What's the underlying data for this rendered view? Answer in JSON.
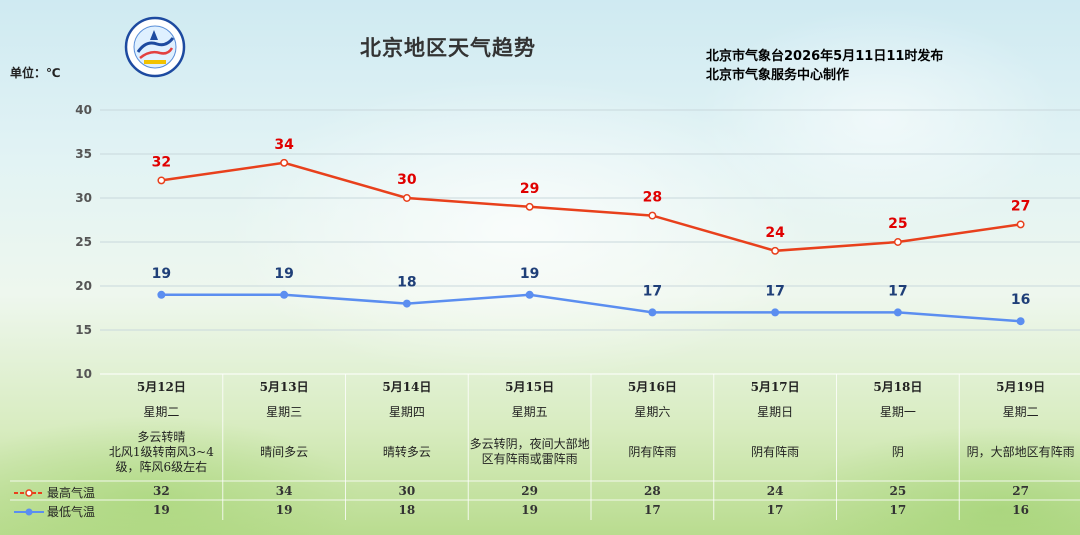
{
  "header": {
    "title": "北京地区天气趋势",
    "publisher_line1": "北京市气象台2026年5月11日11时发布",
    "publisher_line2": "北京市气象服务中心制作",
    "unit": "单位：℃"
  },
  "colors": {
    "high": "#e8401c",
    "low": "#5b8ef0",
    "high_label": "#e00000",
    "low_label": "#1f3f78"
  },
  "chart_data": {
    "type": "line",
    "categories": [
      "5月12日",
      "5月13日",
      "5月14日",
      "5月15日",
      "5月16日",
      "5月17日",
      "5月18日",
      "5月19日"
    ],
    "ylim": [
      10,
      40
    ],
    "yticks": [
      10,
      15,
      20,
      25,
      30,
      35,
      40
    ],
    "grid": true,
    "series": [
      {
        "name": "最高气温",
        "values": [
          32,
          34,
          30,
          29,
          28,
          24,
          25,
          27
        ]
      },
      {
        "name": "最低气温",
        "values": [
          19,
          19,
          18,
          19,
          17,
          17,
          17,
          16
        ]
      }
    ]
  },
  "days": [
    {
      "date": "5月12日",
      "weekday": "星期二",
      "weather": "多云转晴\n北风1级转南风3~4级，阵风6级左右"
    },
    {
      "date": "5月13日",
      "weekday": "星期三",
      "weather": "晴间多云"
    },
    {
      "date": "5月14日",
      "weekday": "星期四",
      "weather": "晴转多云"
    },
    {
      "date": "5月15日",
      "weekday": "星期五",
      "weather": "多云转阴，夜间大部地区有阵雨或雷阵雨"
    },
    {
      "date": "5月16日",
      "weekday": "星期六",
      "weather": "阴有阵雨"
    },
    {
      "date": "5月17日",
      "weekday": "星期日",
      "weather": "阴有阵雨"
    },
    {
      "date": "5月18日",
      "weekday": "星期一",
      "weather": "阴"
    },
    {
      "date": "5月19日",
      "weekday": "星期二",
      "weather": "阴，大部地区有阵雨"
    }
  ],
  "legend": {
    "high": "最高气温",
    "low": "最低气温"
  },
  "logo": {
    "icon": "meteorological-service-logo-icon"
  }
}
